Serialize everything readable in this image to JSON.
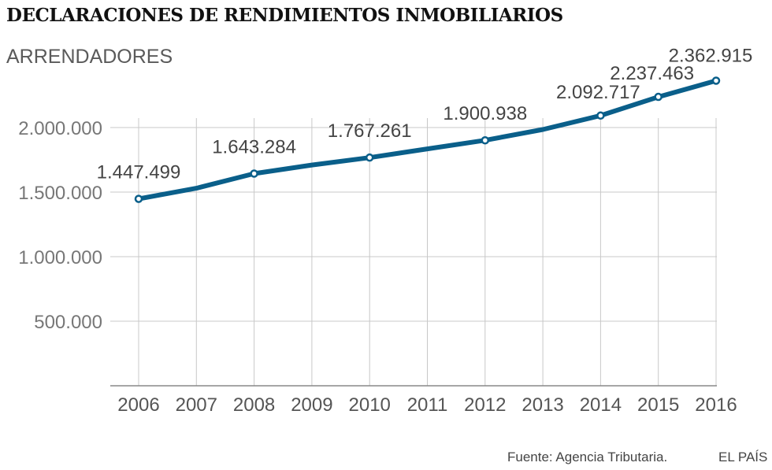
{
  "header": {
    "title": "DECLARACIONES DE RENDIMIENTOS INMOBILIARIOS",
    "subtitle": "ARRENDADORES"
  },
  "footer": {
    "source": "Fuente: Agencia Tributaria.",
    "brand": "EL PAÍS"
  },
  "colors": {
    "line": "#0a5f8a",
    "grid": "#c8c8c8",
    "axis": "#888888"
  },
  "chart_data": {
    "type": "line",
    "title": "DECLARACIONES DE RENDIMIENTOS INMOBILIARIOS",
    "subtitle": "ARRENDADORES",
    "x": [
      2006,
      2007,
      2008,
      2009,
      2010,
      2011,
      2012,
      2013,
      2014,
      2015,
      2016
    ],
    "series": [
      {
        "values": [
          1447499,
          1530000,
          1643284,
          1710000,
          1767261,
          1835000,
          1900938,
          1985000,
          2092717,
          2237463,
          2362915
        ]
      }
    ],
    "labeled_points": [
      {
        "x": 2006,
        "label": "1.447.499"
      },
      {
        "x": 2008,
        "label": "1.643.284"
      },
      {
        "x": 2010,
        "label": "1.767.261"
      },
      {
        "x": 2012,
        "label": "1.900.938"
      },
      {
        "x": 2014,
        "label": "2.092.717"
      },
      {
        "x": 2015,
        "label": "2.237.463"
      },
      {
        "x": 2016,
        "label": "2.362.915"
      }
    ],
    "yticks": [
      {
        "value": 500000,
        "label": "500.000"
      },
      {
        "value": 1000000,
        "label": "1.000.000"
      },
      {
        "value": 1500000,
        "label": "1.500.000"
      },
      {
        "value": 2000000,
        "label": "2.000.000"
      }
    ],
    "ylim": [
      0,
      2400000
    ],
    "grid": true
  }
}
